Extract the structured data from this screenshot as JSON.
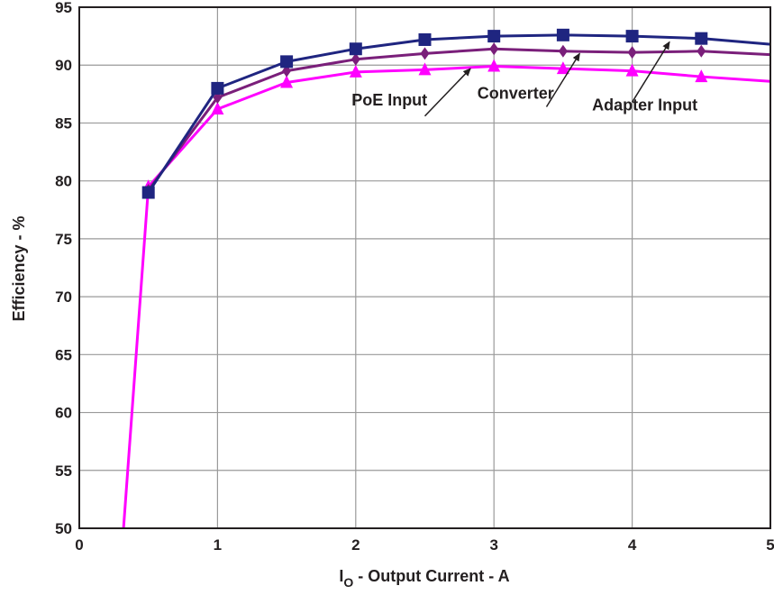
{
  "chart_data": {
    "type": "line",
    "title": "",
    "xlabel_main": "I",
    "xlabel_sub": "O",
    "xlabel_rest": " - Output Current - A",
    "ylabel": "Efficiency - %",
    "xlim": [
      0,
      5
    ],
    "ylim": [
      50,
      95
    ],
    "xticks": [
      0,
      1,
      2,
      3,
      4,
      5
    ],
    "yticks": [
      50,
      55,
      60,
      65,
      70,
      75,
      80,
      85,
      90,
      95
    ],
    "grid": true,
    "legend": "none (curves labeled by annotations)",
    "series": [
      {
        "name": "PoE Input",
        "color": "#ff00ff",
        "marker": "triangle",
        "x": [
          0.32,
          0.5,
          1.0,
          1.5,
          2.0,
          2.5,
          3.0,
          3.5,
          4.0,
          4.5,
          5.0
        ],
        "y": [
          50,
          79.5,
          86.2,
          88.5,
          89.4,
          89.6,
          89.9,
          89.7,
          89.5,
          89.0,
          88.6
        ],
        "markers_at": [
          0.5,
          1.0,
          1.5,
          2.0,
          2.5,
          3.0,
          3.5,
          4.0,
          4.5
        ]
      },
      {
        "name": "Converter",
        "color": "#7a1f7a",
        "marker": "diamond",
        "x": [
          0.5,
          1.0,
          1.5,
          2.0,
          2.5,
          3.0,
          3.5,
          4.0,
          4.5,
          5.0
        ],
        "y": [
          79.2,
          87.2,
          89.5,
          90.5,
          91.0,
          91.4,
          91.2,
          91.1,
          91.2,
          90.9
        ],
        "markers_at": [
          0.5,
          1.0,
          1.5,
          2.0,
          2.5,
          3.0,
          3.5,
          4.0,
          4.5
        ]
      },
      {
        "name": "Adapter Input",
        "color": "#1f2580",
        "marker": "square",
        "x": [
          0.5,
          1.0,
          1.5,
          2.0,
          2.5,
          3.0,
          3.5,
          4.0,
          4.5,
          5.0
        ],
        "y": [
          79.0,
          88.0,
          90.3,
          91.4,
          92.2,
          92.5,
          92.6,
          92.5,
          92.3,
          91.8
        ],
        "markers_at": [
          0.5,
          1.0,
          1.5,
          2.0,
          2.5,
          3.0,
          3.5,
          4.0,
          4.5
        ]
      }
    ],
    "annotations": [
      {
        "text": "PoE Input",
        "series": "PoE Input",
        "text_at": [
          1.97,
          86.5
        ],
        "arrow_from": [
          2.5,
          85.6
        ],
        "arrow_to": [
          2.83,
          89.7
        ]
      },
      {
        "text": "Converter",
        "series": "Converter",
        "text_at": [
          2.88,
          87.1
        ],
        "arrow_from": [
          3.38,
          86.4
        ],
        "arrow_to": [
          3.62,
          91.0
        ]
      },
      {
        "text": "Adapter Input",
        "series": "Adapter Input",
        "text_at": [
          3.71,
          86.1
        ],
        "arrow_from": [
          4.0,
          86.8
        ],
        "arrow_to": [
          4.27,
          92.0
        ]
      }
    ]
  }
}
